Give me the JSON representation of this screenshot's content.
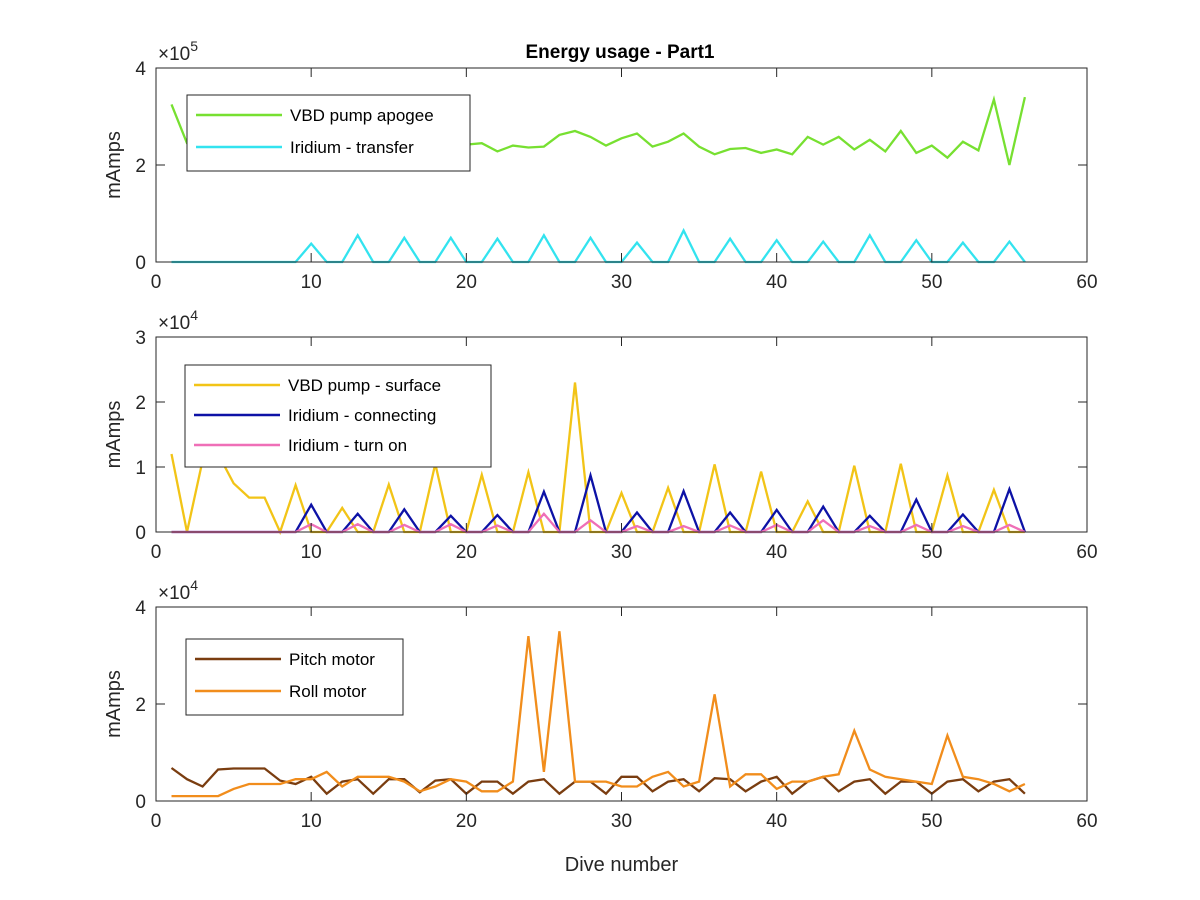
{
  "figure_title": "Energy usage - Part1",
  "chart_data": [
    {
      "type": "line",
      "title": "Energy usage - Part1",
      "xlabel": "",
      "ylabel": "mAmps",
      "xlim": [
        0,
        60
      ],
      "ylim": [
        0,
        400000
      ],
      "xticks": [
        0,
        10,
        20,
        30,
        40,
        50,
        60
      ],
      "yticks": [
        0,
        200000,
        400000
      ],
      "ytick_labels": [
        "0",
        "2",
        "4"
      ],
      "y_multiplier": "×10",
      "y_exponent": "5",
      "grid": false,
      "legend_position": "top-left",
      "x": [
        1,
        2,
        3,
        4,
        5,
        6,
        7,
        8,
        9,
        10,
        11,
        12,
        13,
        14,
        15,
        16,
        17,
        18,
        19,
        20,
        21,
        22,
        23,
        24,
        25,
        26,
        27,
        28,
        29,
        30,
        31,
        32,
        33,
        34,
        35,
        36,
        37,
        38,
        39,
        40,
        41,
        42,
        43,
        44,
        45,
        46,
        47,
        48,
        49,
        50,
        51,
        52,
        53,
        54,
        55,
        56
      ],
      "series": [
        {
          "name": "VBD pump apogee",
          "color": "#77e031",
          "values": [
            325000,
            245000,
            235000,
            240000,
            238000,
            235000,
            242000,
            236000,
            240000,
            245000,
            238000,
            240000,
            242000,
            238000,
            237000,
            240000,
            242000,
            238000,
            245000,
            242000,
            245000,
            228000,
            240000,
            236000,
            238000,
            262000,
            270000,
            258000,
            240000,
            255000,
            265000,
            238000,
            248000,
            265000,
            238000,
            222000,
            233000,
            235000,
            225000,
            232000,
            222000,
            258000,
            242000,
            258000,
            232000,
            252000,
            228000,
            270000,
            225000,
            240000,
            215000,
            248000,
            230000,
            335000,
            200000,
            340000
          ]
        },
        {
          "name": "Iridium - transfer",
          "color": "#33e3ef",
          "values": [
            0,
            0,
            0,
            0,
            0,
            0,
            0,
            0,
            0,
            38000,
            0,
            0,
            55000,
            0,
            0,
            50000,
            0,
            0,
            50000,
            0,
            0,
            48000,
            0,
            0,
            55000,
            0,
            0,
            50000,
            0,
            0,
            40000,
            0,
            0,
            65000,
            0,
            0,
            48000,
            0,
            0,
            45000,
            0,
            0,
            42000,
            0,
            0,
            55000,
            0,
            0,
            45000,
            0,
            0,
            40000,
            0,
            0,
            42000,
            0
          ]
        }
      ]
    },
    {
      "type": "line",
      "title": "",
      "xlabel": "",
      "ylabel": "mAmps",
      "xlim": [
        0,
        60
      ],
      "ylim": [
        0,
        30000
      ],
      "xticks": [
        0,
        10,
        20,
        30,
        40,
        50,
        60
      ],
      "yticks": [
        0,
        10000,
        20000,
        30000
      ],
      "ytick_labels": [
        "0",
        "1",
        "2",
        "3"
      ],
      "y_multiplier": "×10",
      "y_exponent": "4",
      "grid": false,
      "legend_position": "top-left",
      "x": [
        1,
        2,
        3,
        4,
        5,
        6,
        7,
        8,
        9,
        10,
        11,
        12,
        13,
        14,
        15,
        16,
        17,
        18,
        19,
        20,
        21,
        22,
        23,
        24,
        25,
        26,
        27,
        28,
        29,
        30,
        31,
        32,
        33,
        34,
        35,
        36,
        37,
        38,
        39,
        40,
        41,
        42,
        43,
        44,
        45,
        46,
        47,
        48,
        49,
        50,
        51,
        52,
        53,
        54,
        55,
        56
      ],
      "series": [
        {
          "name": "VBD pump - surface",
          "color": "#f2c417",
          "values": [
            12000,
            0,
            11000,
            12000,
            7500,
            5300,
            5300,
            0,
            7200,
            0,
            0,
            3700,
            0,
            0,
            7300,
            0,
            0,
            10500,
            0,
            0,
            8800,
            0,
            0,
            9200,
            0,
            0,
            23000,
            0,
            0,
            6000,
            0,
            0,
            6800,
            0,
            0,
            10400,
            0,
            0,
            9300,
            0,
            0,
            4700,
            0,
            0,
            10200,
            0,
            0,
            10500,
            0,
            0,
            8700,
            0,
            0,
            6500,
            0,
            0
          ]
        },
        {
          "name": "Iridium - connecting",
          "color": "#0d12a6",
          "values": [
            0,
            0,
            0,
            0,
            0,
            0,
            0,
            0,
            0,
            4200,
            0,
            0,
            2800,
            0,
            0,
            3500,
            0,
            0,
            2500,
            0,
            0,
            2600,
            0,
            0,
            6200,
            0,
            0,
            8700,
            0,
            0,
            3000,
            0,
            0,
            6300,
            0,
            0,
            3000,
            0,
            0,
            3400,
            0,
            0,
            3900,
            0,
            0,
            2500,
            0,
            0,
            5000,
            0,
            0,
            2700,
            0,
            0,
            6600,
            0
          ]
        },
        {
          "name": "Iridium - turn on",
          "color": "#ef6fb7",
          "values": [
            0,
            0,
            0,
            0,
            0,
            0,
            0,
            0,
            0,
            1200,
            0,
            0,
            1200,
            0,
            0,
            1100,
            0,
            0,
            1200,
            0,
            0,
            1000,
            0,
            0,
            2800,
            0,
            0,
            1800,
            0,
            0,
            900,
            0,
            0,
            900,
            0,
            0,
            1000,
            0,
            0,
            1100,
            0,
            0,
            1800,
            0,
            0,
            900,
            0,
            0,
            1100,
            0,
            0,
            900,
            0,
            0,
            1100,
            0
          ]
        }
      ]
    },
    {
      "type": "line",
      "title": "",
      "xlabel": "Dive number",
      "ylabel": "mAmps",
      "xlim": [
        0,
        60
      ],
      "ylim": [
        0,
        40000
      ],
      "xticks": [
        0,
        10,
        20,
        30,
        40,
        50,
        60
      ],
      "yticks": [
        0,
        20000,
        40000
      ],
      "ytick_labels": [
        "0",
        "2",
        "4"
      ],
      "y_multiplier": "×10",
      "y_exponent": "4",
      "grid": false,
      "legend_position": "top-left",
      "x": [
        1,
        2,
        3,
        4,
        5,
        6,
        7,
        8,
        9,
        10,
        11,
        12,
        13,
        14,
        15,
        16,
        17,
        18,
        19,
        20,
        21,
        22,
        23,
        24,
        25,
        26,
        27,
        28,
        29,
        30,
        31,
        32,
        33,
        34,
        35,
        36,
        37,
        38,
        39,
        40,
        41,
        42,
        43,
        44,
        45,
        46,
        47,
        48,
        49,
        50,
        51,
        52,
        53,
        54,
        55,
        56
      ],
      "series": [
        {
          "name": "Pitch motor",
          "color": "#7a3d10",
          "values": [
            6800,
            4500,
            3000,
            6500,
            6700,
            6700,
            6700,
            4200,
            3500,
            5000,
            1500,
            4000,
            4500,
            1500,
            4500,
            4500,
            1800,
            4200,
            4500,
            1500,
            4000,
            4000,
            1500,
            4000,
            4500,
            1500,
            4000,
            4000,
            1500,
            5000,
            5000,
            2000,
            4000,
            4500,
            2000,
            4700,
            4500,
            2000,
            4000,
            5000,
            1500,
            4000,
            5000,
            2000,
            4000,
            4500,
            1500,
            4000,
            4000,
            1500,
            4000,
            4500,
            2000,
            4000,
            4500,
            1500
          ]
        },
        {
          "name": "Roll motor",
          "color": "#f18d1c",
          "values": [
            1000,
            1000,
            1000,
            1000,
            2500,
            3500,
            3500,
            3500,
            4500,
            4500,
            6000,
            3000,
            5000,
            5000,
            5000,
            4000,
            2000,
            3000,
            4500,
            4000,
            2000,
            2000,
            4000,
            34000,
            6000,
            35000,
            4000,
            4000,
            4000,
            3000,
            3000,
            5000,
            6000,
            3000,
            4000,
            22000,
            3000,
            5500,
            5500,
            2500,
            4000,
            4000,
            5000,
            5500,
            14500,
            6500,
            5000,
            4500,
            4000,
            3500,
            13500,
            5000,
            4500,
            3500,
            2000,
            3500
          ]
        }
      ]
    }
  ]
}
